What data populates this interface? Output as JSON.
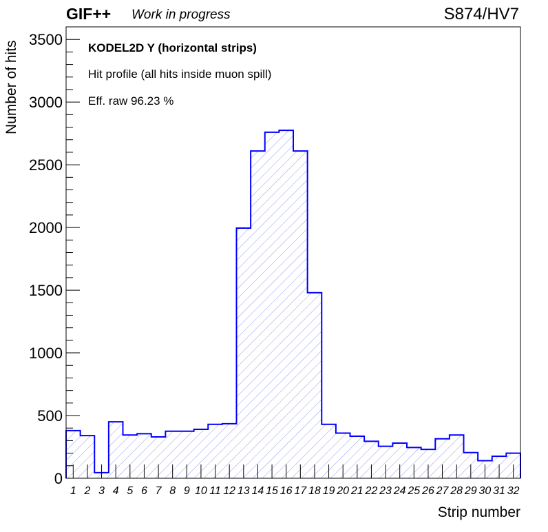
{
  "header": {
    "brand": "GIF++",
    "status": "Work in progress",
    "run_label": "S874/HV7"
  },
  "info": {
    "title": "KODEL2D Y (horizontal strips)",
    "subtitle": "Hit profile (all hits inside muon spill)",
    "efficiency": "Eff. raw 96.23 %"
  },
  "chart_data": {
    "type": "bar",
    "xlabel": "Strip number",
    "ylabel": "Number of hits",
    "categories": [
      "1",
      "2",
      "3",
      "4",
      "5",
      "6",
      "7",
      "8",
      "9",
      "10",
      "11",
      "12",
      "13",
      "14",
      "15",
      "16",
      "17",
      "18",
      "19",
      "20",
      "21",
      "22",
      "23",
      "24",
      "25",
      "26",
      "27",
      "28",
      "29",
      "30",
      "31",
      "32"
    ],
    "values": [
      380,
      340,
      45,
      450,
      345,
      355,
      330,
      375,
      375,
      390,
      430,
      435,
      1995,
      2610,
      2760,
      2775,
      2610,
      1480,
      430,
      360,
      335,
      295,
      255,
      280,
      245,
      230,
      315,
      345,
      205,
      140,
      175,
      200
    ],
    "ylim": [
      0,
      3600
    ],
    "yticks": [
      0,
      500,
      1000,
      1500,
      2000,
      2500,
      3000,
      3500
    ],
    "fill": "hatched",
    "line_color": "#0000ff",
    "hatch_color": "#9a9af0"
  }
}
